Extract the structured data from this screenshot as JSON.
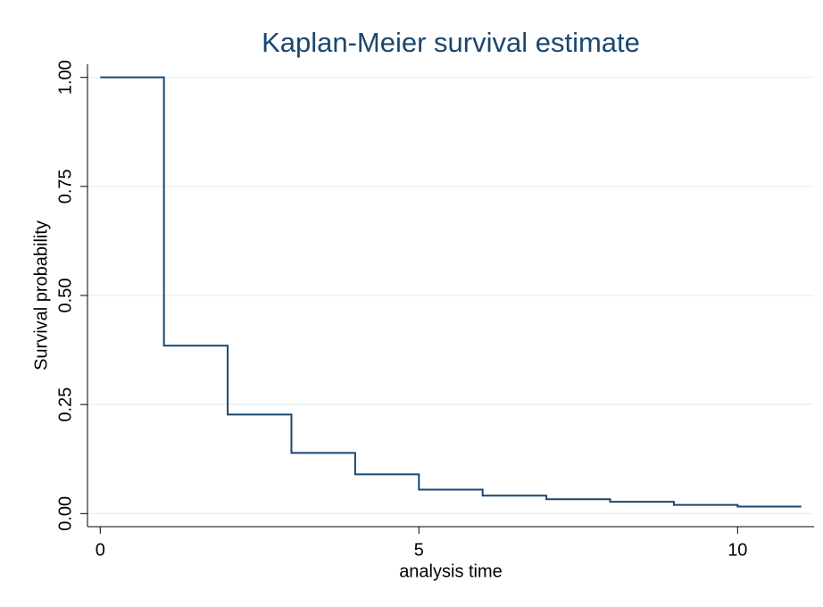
{
  "chart_data": {
    "type": "step",
    "title": "Kaplan-Meier survival estimate",
    "x_label": "analysis time",
    "y_label": "Survival probability",
    "x": [
      0,
      1,
      2,
      3,
      4,
      5,
      6,
      7,
      8,
      9,
      10,
      11
    ],
    "series": [
      {
        "name": "Survival",
        "color": "#1a476f",
        "values": [
          1,
          0.385,
          0.227,
          0.139,
          0.09,
          0.055,
          0.041,
          0.033,
          0.027,
          0.02,
          0.016,
          0.016
        ]
      }
    ],
    "xlim": [
      -0.2,
      11.2
    ],
    "ylim": [
      -0.03,
      1.03
    ],
    "xticks": [
      0,
      5,
      10
    ],
    "yticks": [
      {
        "value": 0,
        "label": "0.00"
      },
      {
        "value": 0.25,
        "label": "0.25"
      },
      {
        "value": 0.5,
        "label": "0.50"
      },
      {
        "value": 0.75,
        "label": "0.75"
      },
      {
        "value": 1,
        "label": "1.00"
      }
    ],
    "grid": true
  }
}
